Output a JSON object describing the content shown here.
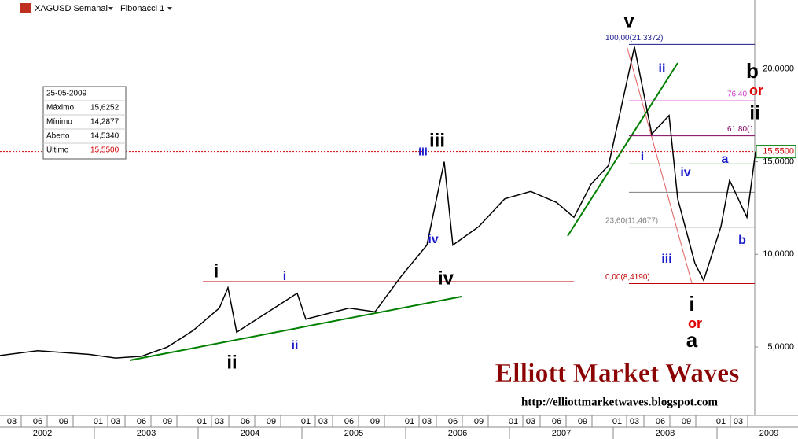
{
  "chart_data": {
    "type": "line",
    "title": "XAGUSD Semanal",
    "subtitle": "Fibonacci 1",
    "color": "#000000",
    "x": [
      "2002-01",
      "2002-06",
      "2002-12",
      "2003-03",
      "2003-06",
      "2003-09",
      "2003-12",
      "2004-03",
      "2004-04",
      "2004-05",
      "2004-08",
      "2004-12",
      "2005-01",
      "2005-06",
      "2005-09",
      "2005-12",
      "2006-03",
      "2006-05",
      "2006-06",
      "2006-09",
      "2006-12",
      "2007-03",
      "2007-06",
      "2007-08",
      "2007-10",
      "2007-12",
      "2008-03",
      "2008-05",
      "2008-07",
      "2008-08",
      "2008-10",
      "2008-11",
      "2009-01",
      "2009-02",
      "2009-04",
      "2009-05"
    ],
    "values": [
      4.5,
      4.8,
      4.6,
      4.4,
      4.5,
      5.0,
      5.9,
      7.1,
      8.2,
      5.8,
      6.7,
      7.9,
      6.5,
      7.1,
      6.9,
      8.8,
      10.5,
      15.0,
      10.5,
      11.5,
      13.0,
      13.4,
      12.8,
      12.0,
      13.8,
      14.8,
      21.2,
      16.5,
      17.5,
      13.0,
      9.5,
      8.6,
      11.5,
      14.0,
      12.0,
      15.55
    ],
    "ylim": [
      1.35,
      23.73
    ],
    "yticks": [
      {
        "value": 5,
        "label": "5,0000"
      },
      {
        "value": 10,
        "label": "10,0000"
      },
      {
        "value": 15,
        "label": "15,0000"
      },
      {
        "value": 20,
        "label": "20,0000"
      }
    ],
    "last_price": {
      "value": 15.55,
      "label": "15,5500"
    },
    "month_ticks": [
      {
        "value": "2002-03",
        "label": "03"
      },
      {
        "value": "2002-06",
        "label": "06"
      },
      {
        "value": "2002-09",
        "label": "09"
      },
      {
        "value": "2003-01",
        "label": "01"
      },
      {
        "value": "2003-03",
        "label": "03"
      },
      {
        "value": "2003-06",
        "label": "06"
      },
      {
        "value": "2003-09",
        "label": "09"
      },
      {
        "value": "2004-01",
        "label": "01"
      },
      {
        "value": "2004-03",
        "label": "03"
      },
      {
        "value": "2004-06",
        "label": "06"
      },
      {
        "value": "2004-09",
        "label": "09"
      },
      {
        "value": "2005-01",
        "label": "01"
      },
      {
        "value": "2005-03",
        "label": "03"
      },
      {
        "value": "2005-06",
        "label": "06"
      },
      {
        "value": "2005-09",
        "label": "09"
      },
      {
        "value": "2006-01",
        "label": "01"
      },
      {
        "value": "2006-03",
        "label": "03"
      },
      {
        "value": "2006-06",
        "label": "06"
      },
      {
        "value": "2006-09",
        "label": "09"
      },
      {
        "value": "2007-01",
        "label": "01"
      },
      {
        "value": "2007-03",
        "label": "03"
      },
      {
        "value": "2007-06",
        "label": "06"
      },
      {
        "value": "2007-09",
        "label": "09"
      },
      {
        "value": "2008-01",
        "label": "01"
      },
      {
        "value": "2008-03",
        "label": "03"
      },
      {
        "value": "2008-06",
        "label": "06"
      },
      {
        "value": "2008-09",
        "label": "09"
      },
      {
        "value": "2009-01",
        "label": "01"
      },
      {
        "value": "2009-03",
        "label": "03"
      }
    ],
    "years": [
      2002,
      2003,
      2004,
      2005,
      2006,
      2007,
      2008,
      2009
    ],
    "fibonacci": [
      {
        "value": 21.3372,
        "label": "100,00(21,3372)",
        "color": "#1a1a8c"
      },
      {
        "value": 18.29,
        "label": "76,40",
        "color": "#d040d0"
      },
      {
        "value": 16.4,
        "label": "61,80(1",
        "color": "#800060"
      },
      {
        "value": 14.88,
        "color": "#008000"
      },
      {
        "value": 13.35,
        "color": "#808080"
      },
      {
        "value": 11.4677,
        "label": "23,60(11,4677)",
        "color": "#808080"
      },
      {
        "value": 8.419,
        "label": "0,00(8,4190)",
        "color": "#c00000"
      }
    ],
    "info": {
      "date": "25-05-2009",
      "rows": [
        [
          "Máximo",
          "15,6252"
        ],
        [
          "Mínimo",
          "14,2877"
        ],
        [
          "Aberto",
          "14,5340"
        ],
        [
          "Último",
          "15,5500"
        ]
      ]
    },
    "annotations": [
      "v",
      "ii",
      "b",
      "or",
      "ii",
      "i",
      "a",
      "iv",
      "b",
      "iii",
      "i",
      "or",
      "a",
      "iii",
      "iii",
      "iv",
      "iv",
      "i",
      "i",
      "ii",
      "ii"
    ],
    "watermark": "Elliott Market Waves",
    "url": "http://elliottmarketwaves.blogspot.com"
  }
}
